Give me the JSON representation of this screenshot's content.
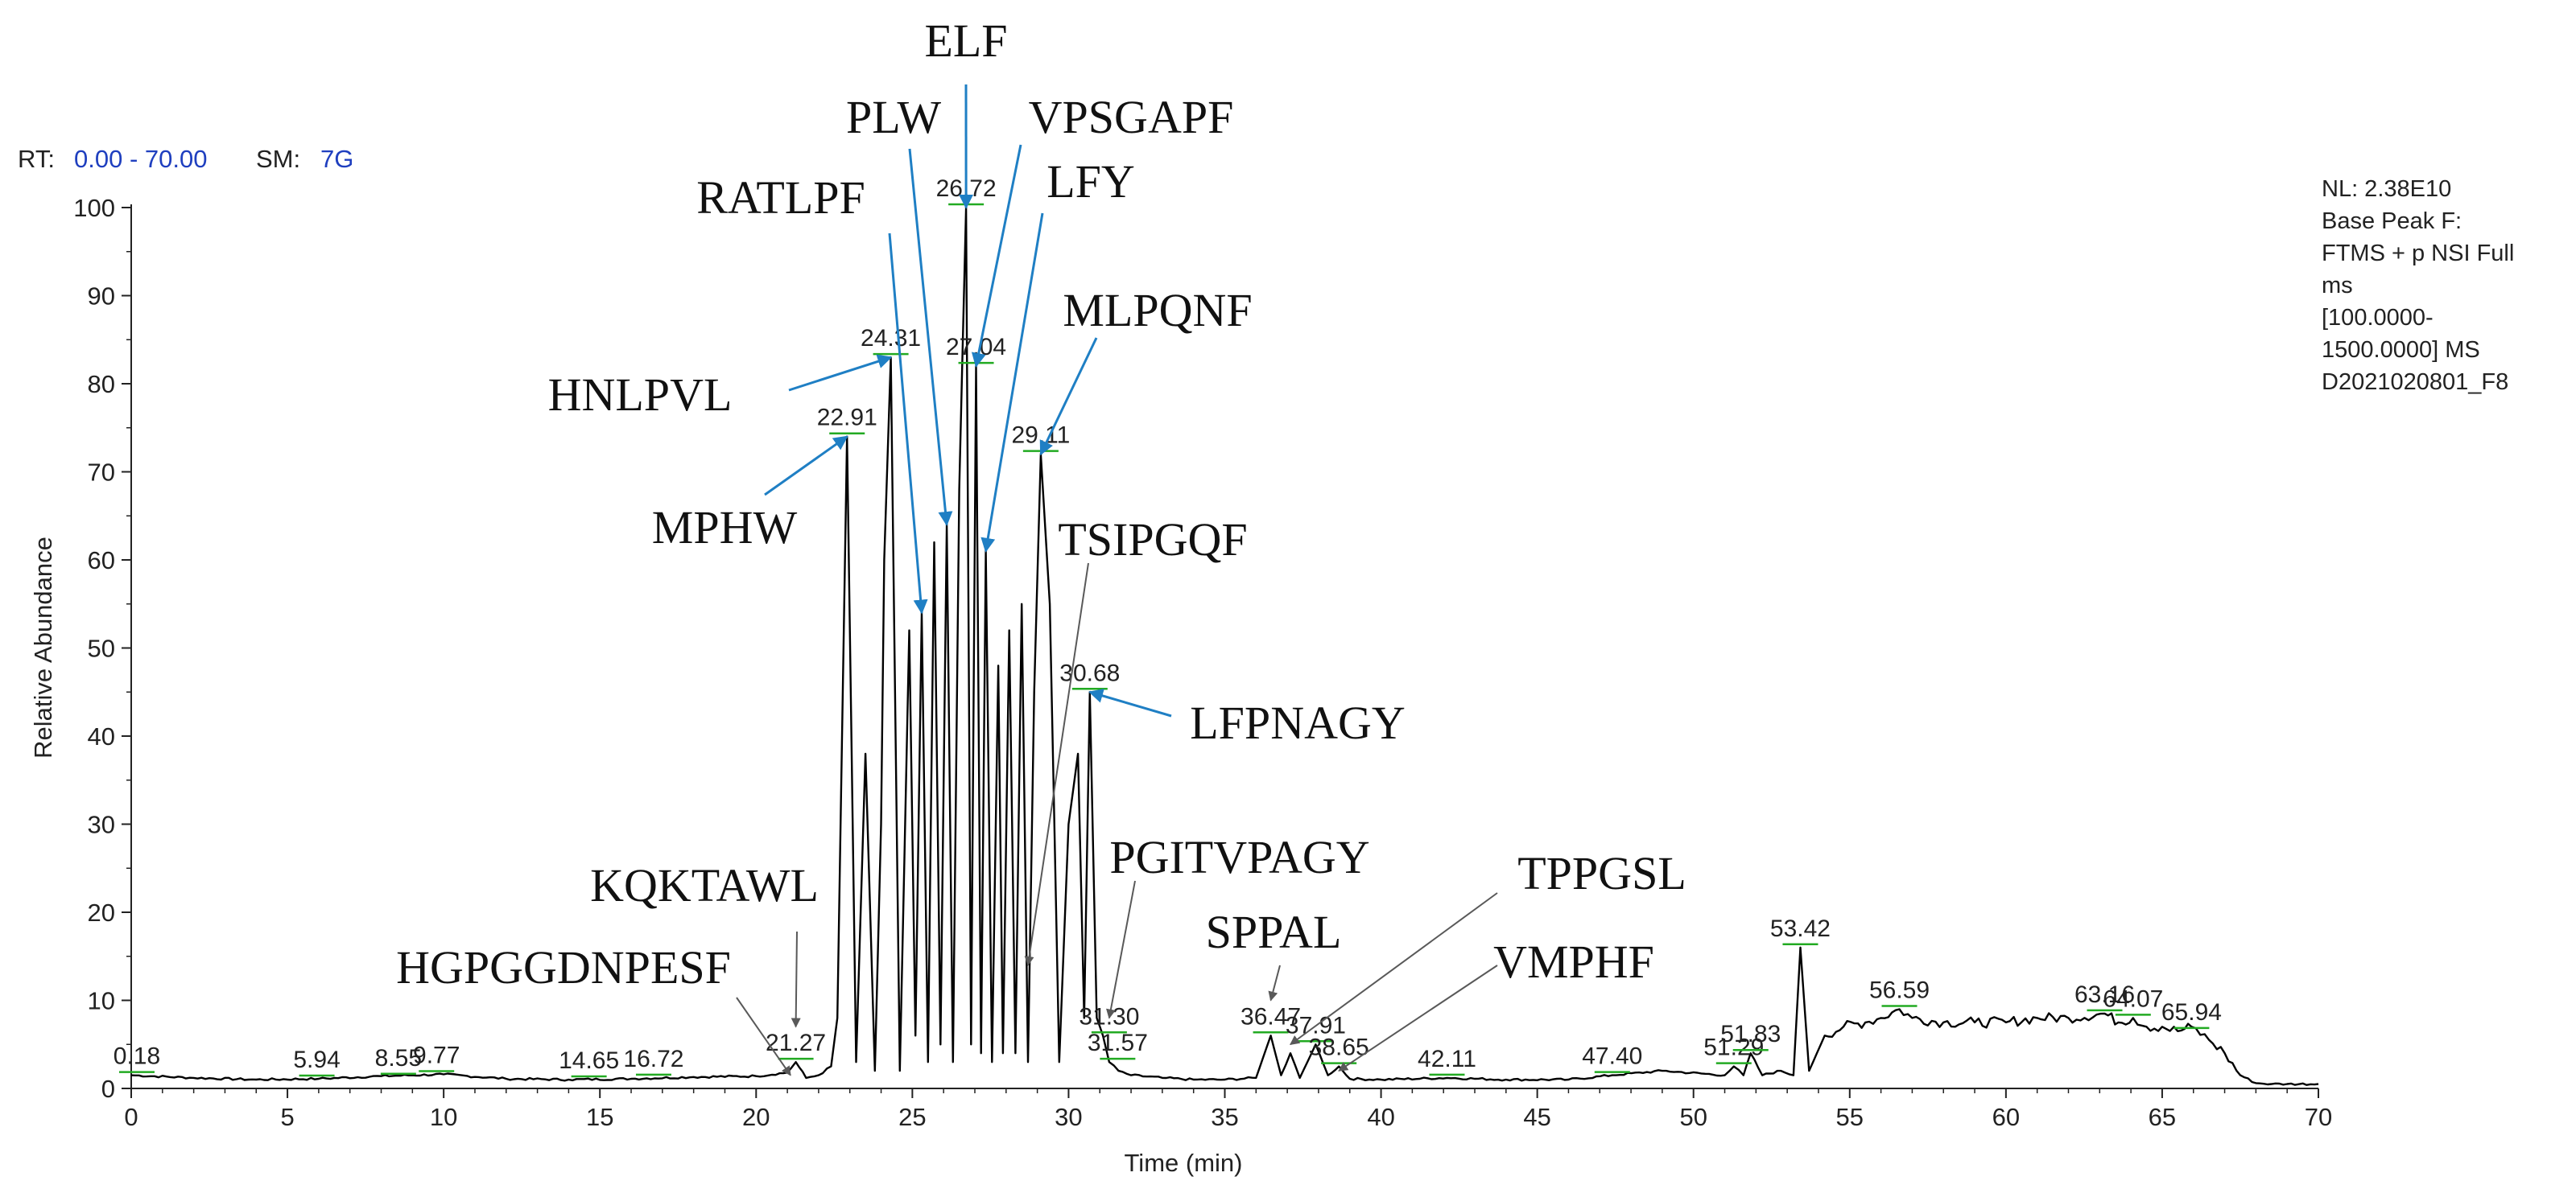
{
  "header": {
    "rt_label": "RT:",
    "rt_value": "0.00 - 70.00",
    "sm_label": "SM:",
    "sm_value": "7G"
  },
  "info_box": {
    "lines": [
      "NL: 2.38E10",
      "Base Peak F:",
      "FTMS + p NSI Full",
      "ms",
      "[100.0000-",
      "1500.0000]  MS",
      "D2021020801_F8"
    ]
  },
  "colors": {
    "trace": "#000000",
    "rt_value": "#1f3fbf",
    "peak_marker": "#22aa22",
    "blue_arrow": "#1f7fc4",
    "gray_arrow": "#595959"
  },
  "chart_data": {
    "type": "line",
    "title": "",
    "xlabel": "Time (min)",
    "ylabel": "Relative Abundance",
    "xlim": [
      0,
      70
    ],
    "ylim": [
      0,
      100
    ],
    "xticks": [
      0,
      5,
      10,
      15,
      20,
      25,
      30,
      35,
      40,
      45,
      50,
      55,
      60,
      65,
      70
    ],
    "yticks": [
      0,
      10,
      20,
      30,
      40,
      50,
      60,
      70,
      80,
      90,
      100
    ],
    "grid": false,
    "series": [
      {
        "x": [
          0,
          2,
          4,
          6,
          8,
          10,
          12,
          14,
          16,
          18,
          20,
          21,
          21.27,
          21.6,
          22,
          22.4,
          22.6,
          22.91,
          23.2,
          23.5,
          23.8,
          24.0,
          24.1,
          24.31,
          24.6,
          24.9,
          25.1,
          25.3,
          25.5,
          25.7,
          25.9,
          26.1,
          26.3,
          26.5,
          26.72,
          26.88,
          27.04,
          27.2,
          27.35,
          27.55,
          27.75,
          27.9,
          28.1,
          28.3,
          28.5,
          28.7,
          28.9,
          29.11,
          29.4,
          29.7,
          30.0,
          30.3,
          30.5,
          30.68,
          30.9,
          31.1,
          31.3,
          31.6,
          32,
          33,
          34,
          35,
          36,
          36.47,
          36.8,
          37.1,
          37.4,
          37.91,
          38.3,
          38.65,
          39,
          40,
          42.11,
          44,
          46,
          47.4,
          49,
          51,
          51.29,
          51.6,
          51.83,
          52.2,
          52.8,
          53.2,
          53.42,
          53.7,
          54.2,
          54.8,
          55.5,
          56,
          56.59,
          57,
          58,
          59,
          60,
          61,
          62,
          63.16,
          63.6,
          64.07,
          64.5,
          65,
          65.5,
          65.94,
          66.5,
          67,
          67.5,
          68,
          68.5,
          69,
          70
        ],
        "values": [
          1.5,
          1.2,
          1.0,
          1.1,
          1.4,
          1.6,
          1.1,
          1.0,
          1.1,
          1.3,
          1.4,
          1.8,
          3.0,
          1.2,
          1.5,
          2.5,
          8,
          74,
          3,
          38,
          2,
          30,
          60,
          83,
          2,
          52,
          6,
          54,
          3,
          62,
          5,
          64,
          3,
          68,
          100,
          5,
          82,
          4,
          61,
          3,
          48,
          4,
          52,
          4,
          55,
          3,
          45,
          72,
          55,
          3,
          30,
          38,
          8,
          45,
          8,
          6,
          3,
          2,
          1.5,
          1.2,
          1.0,
          1.0,
          1.2,
          6,
          1.5,
          4,
          1.2,
          5,
          1.5,
          2.5,
          1.1,
          1.0,
          1.2,
          1.0,
          1.0,
          1.5,
          2.0,
          1.5,
          2.5,
          1.5,
          4,
          1.5,
          2.0,
          1.5,
          16,
          2.0,
          6,
          7,
          7.5,
          8,
          9,
          8,
          7.5,
          7.5,
          7.5,
          8,
          8,
          8.5,
          7.5,
          8,
          7,
          7,
          6.5,
          7,
          5.5,
          4,
          1.5,
          0.6,
          0.5,
          0.5,
          0.5
        ]
      }
    ],
    "peak_labels": [
      {
        "label": "0.18",
        "x": 0.18,
        "y": 1.5
      },
      {
        "label": "5.94",
        "x": 5.94,
        "y": 1.1
      },
      {
        "label": "8.55",
        "x": 8.55,
        "y": 1.3
      },
      {
        "label": "9.77",
        "x": 9.77,
        "y": 1.6
      },
      {
        "label": "14.65",
        "x": 14.65,
        "y": 1.0
      },
      {
        "label": "16.72",
        "x": 16.72,
        "y": 1.2
      },
      {
        "label": "21.27",
        "x": 21.27,
        "y": 3.0
      },
      {
        "label": "22.91",
        "x": 22.91,
        "y": 74
      },
      {
        "label": "24.31",
        "x": 24.31,
        "y": 83
      },
      {
        "label": "26.72",
        "x": 26.72,
        "y": 100
      },
      {
        "label": "27.04",
        "x": 27.04,
        "y": 82
      },
      {
        "label": "29.11",
        "x": 29.11,
        "y": 72
      },
      {
        "label": "30.68",
        "x": 30.68,
        "y": 45
      },
      {
        "label": "31.30",
        "x": 31.3,
        "y": 6
      },
      {
        "label": "31.57",
        "x": 31.57,
        "y": 3
      },
      {
        "label": "36.47",
        "x": 36.47,
        "y": 6
      },
      {
        "label": "37.91",
        "x": 37.91,
        "y": 5
      },
      {
        "label": "38.65",
        "x": 38.65,
        "y": 2.5
      },
      {
        "label": "42.11",
        "x": 42.11,
        "y": 1.2
      },
      {
        "label": "47.40",
        "x": 47.4,
        "y": 1.5
      },
      {
        "label": "51.29",
        "x": 51.29,
        "y": 2.5
      },
      {
        "label": "51.83",
        "x": 51.83,
        "y": 4
      },
      {
        "label": "53.42",
        "x": 53.42,
        "y": 16
      },
      {
        "label": "56.59",
        "x": 56.59,
        "y": 9
      },
      {
        "label": "63.16",
        "x": 63.16,
        "y": 8.5
      },
      {
        "label": "64.07",
        "x": 64.07,
        "y": 8
      },
      {
        "label": "65.94",
        "x": 65.94,
        "y": 6.5
      }
    ],
    "annotations": [
      {
        "label": "ELF",
        "target_x": 26.72,
        "target_y": 100,
        "color": "blue"
      },
      {
        "label": "PLW",
        "target_x": 26.1,
        "target_y": 64,
        "color": "blue"
      },
      {
        "label": "VPSGAPF",
        "target_x": 27.04,
        "target_y": 82,
        "color": "blue"
      },
      {
        "label": "RATLPF",
        "target_x": 25.3,
        "target_y": 54,
        "color": "blue"
      },
      {
        "label": "LFY",
        "target_x": 27.35,
        "target_y": 61,
        "color": "blue"
      },
      {
        "label": "MLPQNF",
        "target_x": 29.11,
        "target_y": 72,
        "color": "blue"
      },
      {
        "label": "HNLPVL",
        "target_x": 24.31,
        "target_y": 83,
        "color": "blue"
      },
      {
        "label": "MPHW",
        "target_x": 22.91,
        "target_y": 74,
        "color": "blue"
      },
      {
        "label": "TSIPGQF",
        "target_x": 28.7,
        "target_y": 14,
        "color": "gray"
      },
      {
        "label": "LFPNAGY",
        "target_x": 30.68,
        "target_y": 45,
        "color": "blue"
      },
      {
        "label": "PGITVPAGY",
        "target_x": 31.3,
        "target_y": 8,
        "color": "gray"
      },
      {
        "label": "KQKTAWL",
        "target_x": 21.27,
        "target_y": 7,
        "color": "gray"
      },
      {
        "label": "HGPGGDNPESF",
        "target_x": 21.1,
        "target_y": 1.5,
        "color": "gray"
      },
      {
        "label": "SPPAL",
        "target_x": 36.47,
        "target_y": 10,
        "color": "gray"
      },
      {
        "label": "TPPGSL",
        "target_x": 37.1,
        "target_y": 5,
        "color": "gray"
      },
      {
        "label": "VMPHF",
        "target_x": 38.65,
        "target_y": 2,
        "color": "gray"
      }
    ]
  }
}
